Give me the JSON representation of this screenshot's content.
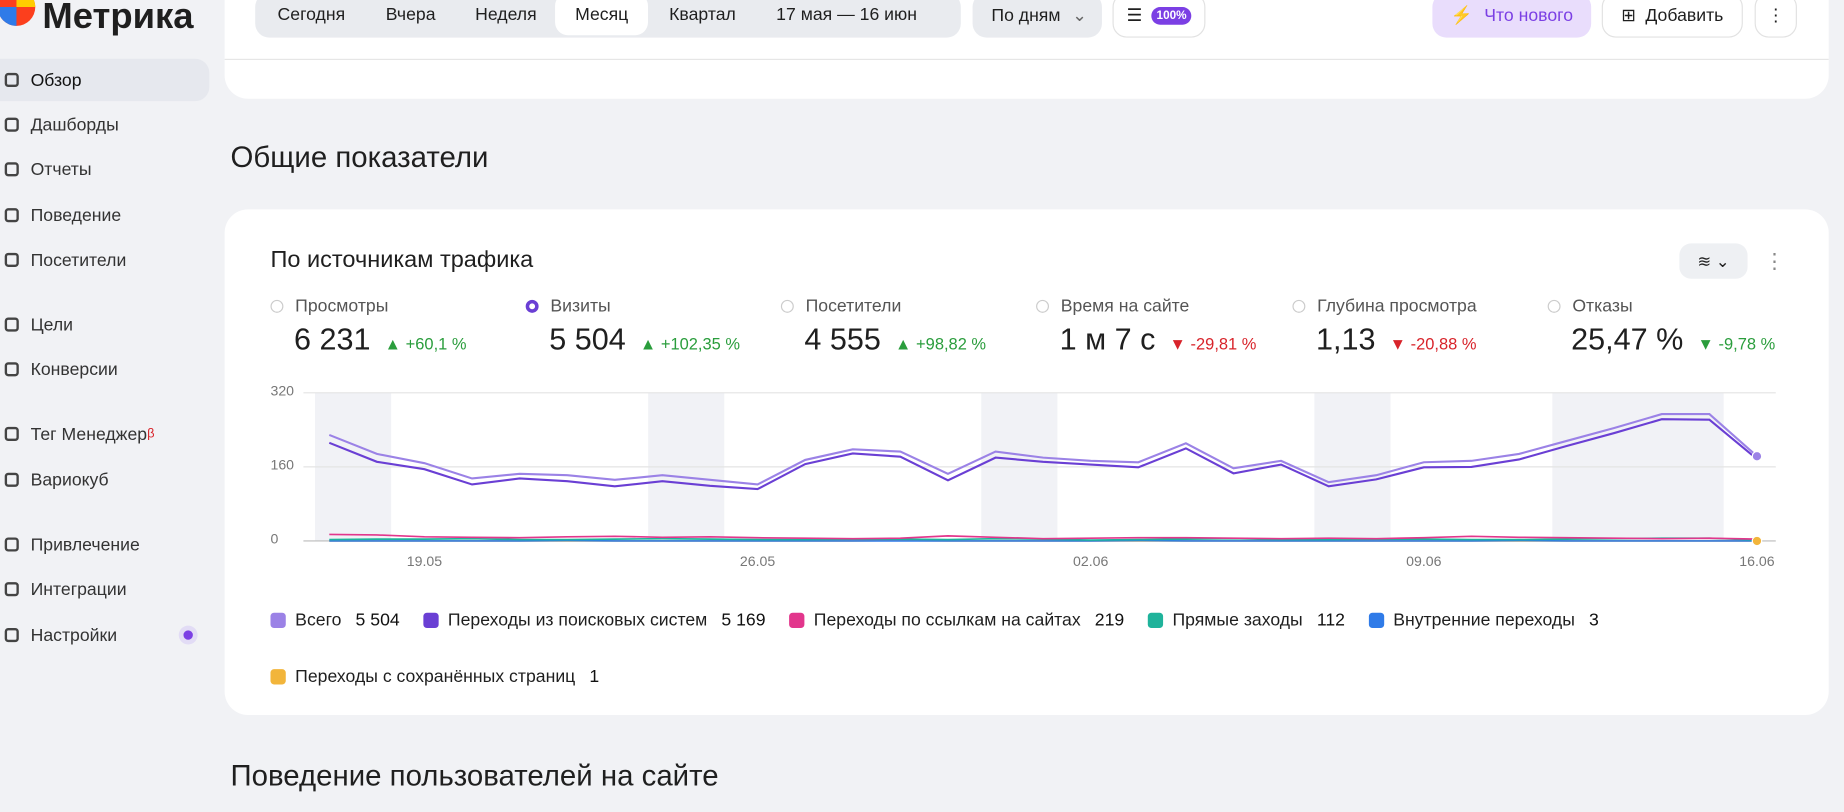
{
  "sidebar": {
    "logo": "Метрика",
    "items": [
      {
        "label": "Обзор"
      },
      {
        "label": "Дашборды"
      },
      {
        "label": "Отчеты"
      },
      {
        "label": "Поведение"
      },
      {
        "label": "Посетители"
      },
      {
        "label": "Цели"
      },
      {
        "label": "Конверсии"
      },
      {
        "label": "Тег Менеджер",
        "sup": "β"
      },
      {
        "label": "Вариокуб"
      },
      {
        "label": "Привлечение"
      },
      {
        "label": "Интеграции"
      },
      {
        "label": "Настройки"
      }
    ]
  },
  "toolbar": {
    "periods": [
      "Сегодня",
      "Вчера",
      "Неделя",
      "Месяц",
      "Квартал"
    ],
    "date_range": "17 мая — 16 июн",
    "grouping": "По дням",
    "badge": "100%",
    "whats_new": "Что нового",
    "add": "Добавить"
  },
  "section_title": "Общие показатели",
  "widget": {
    "title": "По источникам трафика",
    "metrics": [
      {
        "name": "Просмотры",
        "value": "6 231",
        "arrow": "▲",
        "change": "+60,1 %",
        "color": "#2a9d3c"
      },
      {
        "name": "Визиты",
        "value": "5 504",
        "arrow": "▲",
        "change": "+102,35 %",
        "color": "#2a9d3c"
      },
      {
        "name": "Посетители",
        "value": "4 555",
        "arrow": "▲",
        "change": "+98,82 %",
        "color": "#2a9d3c"
      },
      {
        "name": "Время на сайте",
        "value": "1 м 7 с",
        "arrow": "▼",
        "change": "-29,81 %",
        "color": "#d8232a"
      },
      {
        "name": "Глубина просмотра",
        "value": "1,13",
        "arrow": "▼",
        "change": "-20,88 %",
        "color": "#d8232a"
      },
      {
        "name": "Отказы",
        "value": "25,47 %",
        "arrow": "▼",
        "change": "-9,78 %",
        "color": "#2a9d3c"
      }
    ]
  },
  "chart_data": {
    "type": "line",
    "categories": [
      null,
      null,
      "19.05",
      null,
      null,
      null,
      null,
      null,
      null,
      "26.05",
      null,
      null,
      null,
      null,
      null,
      null,
      "02.06",
      null,
      null,
      null,
      null,
      null,
      null,
      "09.06",
      null,
      null,
      null,
      null,
      null,
      null,
      "16.06"
    ],
    "ylim": [
      0,
      320
    ],
    "yticks": [
      0,
      160,
      320
    ],
    "grid": true,
    "series": [
      {
        "name": "Всего",
        "total": "5 504",
        "color": "#9b82e6",
        "values": [
          229,
          188,
          168,
          135,
          145,
          142,
          132,
          142,
          132,
          122,
          175,
          198,
          193,
          145,
          193,
          180,
          173,
          170,
          211,
          157,
          173,
          127,
          142,
          170,
          173,
          188,
          216,
          244,
          274,
          274,
          183
        ]
      },
      {
        "name": "Переходы из поисковых систем",
        "total": "5 169",
        "color": "#6a3fd4",
        "values": [
          212,
          171,
          155,
          122,
          135,
          129,
          118,
          129,
          119,
          112,
          166,
          189,
          182,
          131,
          180,
          171,
          165,
          159,
          200,
          146,
          165,
          118,
          133,
          159,
          160,
          176,
          205,
          233,
          263,
          262,
          177
        ]
      },
      {
        "name": "Переходы по ссылкам на сайтах",
        "total": "219",
        "color": "#e2368c",
        "values": [
          14,
          13,
          9,
          8,
          7,
          9,
          10,
          8,
          9,
          7,
          6,
          5,
          6,
          11,
          8,
          5,
          6,
          7,
          7,
          6,
          5,
          6,
          5,
          7,
          10,
          8,
          7,
          6,
          5,
          6,
          4
        ]
      },
      {
        "name": "Прямые заходы",
        "total": "112",
        "color": "#1fb39b",
        "values": [
          3,
          4,
          4,
          5,
          3,
          3,
          4,
          5,
          4,
          3,
          3,
          4,
          4,
          3,
          5,
          4,
          2,
          3,
          4,
          5,
          3,
          3,
          4,
          4,
          3,
          3,
          4,
          5,
          6,
          6,
          2
        ]
      },
      {
        "name": "Внутренние переходы",
        "total": "3",
        "color": "#2f7be8",
        "values": [
          0,
          0,
          0,
          0,
          0,
          1,
          0,
          0,
          0,
          0,
          0,
          0,
          0,
          0,
          0,
          0,
          0,
          1,
          0,
          0,
          0,
          0,
          0,
          0,
          0,
          1,
          0,
          0,
          0,
          0,
          0
        ]
      },
      {
        "name": "Переходы с сохранённых страниц",
        "total": "1",
        "color": "#f2b53b",
        "values": [
          0,
          0,
          0,
          0,
          0,
          0,
          0,
          0,
          0,
          0,
          0,
          0,
          1,
          0,
          0,
          0,
          0,
          0,
          0,
          0,
          0,
          0,
          0,
          0,
          0,
          0,
          0,
          0,
          0,
          0,
          0
        ]
      }
    ]
  },
  "section2_title": "Поведение пользователей на сайте"
}
